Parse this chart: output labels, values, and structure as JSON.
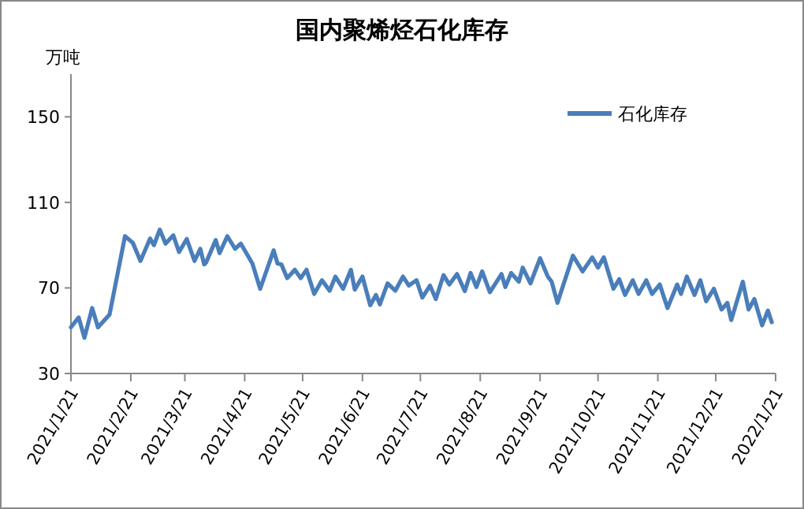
{
  "chart_data": {
    "type": "line",
    "title": "国内聚烯烃石化库存",
    "ylabel": "万吨",
    "x": [
      "2021-01-21",
      "2021-01-25",
      "2021-01-28",
      "2021-02-01",
      "2021-02-04",
      "2021-02-10",
      "2021-02-18",
      "2021-02-22",
      "2021-02-26",
      "2021-03-03",
      "2021-03-05",
      "2021-03-08",
      "2021-03-11",
      "2021-03-15",
      "2021-03-18",
      "2021-03-22",
      "2021-03-26",
      "2021-03-29",
      "2021-03-31",
      "2021-04-01",
      "2021-04-06",
      "2021-04-08",
      "2021-04-12",
      "2021-04-16",
      "2021-04-19",
      "2021-04-25",
      "2021-04-29",
      "2021-05-06",
      "2021-05-08",
      "2021-05-10",
      "2021-05-13",
      "2021-05-17",
      "2021-05-20",
      "2021-05-23",
      "2021-05-27",
      "2021-05-31",
      "2021-06-04",
      "2021-06-07",
      "2021-06-11",
      "2021-06-15",
      "2021-06-17",
      "2021-06-21",
      "2021-06-25",
      "2021-06-28",
      "2021-06-30",
      "2021-07-04",
      "2021-07-08",
      "2021-07-12",
      "2021-07-15",
      "2021-07-19",
      "2021-07-22",
      "2021-07-26",
      "2021-07-29",
      "2021-08-02",
      "2021-08-05",
      "2021-08-09",
      "2021-08-13",
      "2021-08-16",
      "2021-08-19",
      "2021-08-22",
      "2021-08-26",
      "2021-09-01",
      "2021-09-03",
      "2021-09-06",
      "2021-09-10",
      "2021-09-12",
      "2021-09-16",
      "2021-09-21",
      "2021-09-25",
      "2021-09-27",
      "2021-09-30",
      "2021-10-08",
      "2021-10-13",
      "2021-10-18",
      "2021-10-21",
      "2021-10-24",
      "2021-10-29",
      "2021-11-01",
      "2021-11-04",
      "2021-11-08",
      "2021-11-11",
      "2021-11-15",
      "2021-11-18",
      "2021-11-22",
      "2021-11-26",
      "2021-12-01",
      "2021-12-03",
      "2021-12-06",
      "2021-12-10",
      "2021-12-13",
      "2021-12-16",
      "2021-12-20",
      "2021-12-24",
      "2021-12-27",
      "2021-12-29",
      "2022-01-04",
      "2022-01-07",
      "2022-01-10",
      "2022-01-14",
      "2022-01-17",
      "2022-01-19"
    ],
    "series": [
      {
        "name": "石化库存",
        "color": "#4a7ebb",
        "values": [
          51.6,
          56.2,
          46.7,
          60.6,
          51.6,
          57.5,
          94.2,
          91.2,
          82.6,
          93.1,
          90,
          97.3,
          90.7,
          94.6,
          86.8,
          92.9,
          82.6,
          88.3,
          81,
          81.9,
          92.4,
          86.3,
          94.2,
          88.3,
          90.7,
          81.4,
          69.6,
          87.6,
          81.4,
          81,
          74.6,
          78.5,
          74.6,
          78.5,
          67.2,
          73.6,
          68.7,
          75.3,
          69.6,
          78.5,
          69.2,
          75.3,
          61.9,
          66.7,
          62.3,
          72.1,
          68.7,
          75.3,
          71.1,
          73.6,
          65.5,
          71.1,
          64.8,
          76,
          71.6,
          76.5,
          68.5,
          77,
          70.4,
          77.7,
          68,
          76.5,
          70.4,
          77,
          72.9,
          79.5,
          72.1,
          83.9,
          75.3,
          72.9,
          63,
          85.1,
          77.7,
          84.3,
          79.5,
          84.3,
          69.6,
          74.1,
          66.7,
          73.6,
          67.2,
          73.6,
          67.2,
          71.6,
          60.6,
          71.6,
          67.2,
          75.3,
          66.7,
          73.6,
          63.8,
          69.6,
          59.9,
          63,
          55,
          72.9,
          59.9,
          64.8,
          52.5,
          59.4,
          54
        ]
      }
    ],
    "xlim": [
      "2021-01-21",
      "2022-01-21"
    ],
    "xticks": [
      {
        "value": "2021-01-21",
        "label": "2021/1/21"
      },
      {
        "value": "2021-02-21",
        "label": "2021/2/21"
      },
      {
        "value": "2021-03-21",
        "label": "2021/3/21"
      },
      {
        "value": "2021-04-21",
        "label": "2021/4/21"
      },
      {
        "value": "2021-05-21",
        "label": "2021/5/21"
      },
      {
        "value": "2021-06-21",
        "label": "2021/6/21"
      },
      {
        "value": "2021-07-21",
        "label": "2021/7/21"
      },
      {
        "value": "2021-08-21",
        "label": "2021/8/21"
      },
      {
        "value": "2021-09-21",
        "label": "2021/9/21"
      },
      {
        "value": "2021-10-21",
        "label": "2021/10/21"
      },
      {
        "value": "2021-11-21",
        "label": "2021/11/21"
      },
      {
        "value": "2021-12-21",
        "label": "2021/12/21"
      },
      {
        "value": "2022-01-21",
        "label": "2022/1/21"
      }
    ],
    "ylim": [
      30,
      170
    ],
    "yticks": [
      30,
      70,
      110,
      150
    ],
    "legend": "top right",
    "grid": false,
    "marker": "none",
    "line_style": "solid"
  }
}
